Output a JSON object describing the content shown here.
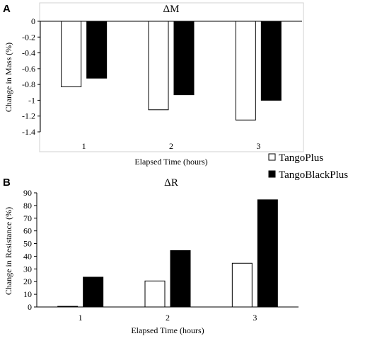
{
  "legend": {
    "items": [
      {
        "label": "TangoPlus",
        "fill": "#ffffff"
      },
      {
        "label": "TangoBlackPlus",
        "fill": "#000000"
      }
    ]
  },
  "chart_data": [
    {
      "panel": "A",
      "type": "bar",
      "title": "ΔM",
      "xlabel": "Elapsed Time (hours)",
      "ylabel": "Change in Mass (%)",
      "categories": [
        "1",
        "2",
        "3"
      ],
      "ylim": [
        -1.4,
        0
      ],
      "yticks": [
        0,
        -0.2,
        -0.4,
        -0.6,
        -0.8,
        -1,
        -1.2,
        -1.4
      ],
      "ytick_labels": [
        "0",
        "-0.2",
        "-0.4",
        "-0.6",
        "-0.8",
        "-1",
        "-1.2",
        "-1.4"
      ],
      "grid": false,
      "series": [
        {
          "name": "TangoPlus",
          "values": [
            -0.83,
            -1.12,
            -1.25
          ]
        },
        {
          "name": "TangoBlackPlus",
          "values": [
            -0.72,
            -0.93,
            -1.0
          ]
        }
      ]
    },
    {
      "panel": "B",
      "type": "bar",
      "title": "ΔR",
      "xlabel": "Elapsed Time (hours)",
      "ylabel": "Change in Resistance (%)",
      "categories": [
        "1",
        "2",
        "3"
      ],
      "ylim": [
        0,
        90
      ],
      "yticks": [
        0,
        10,
        20,
        30,
        40,
        50,
        60,
        70,
        80,
        90
      ],
      "ytick_labels": [
        "0",
        "10",
        "20",
        "30",
        "40",
        "50",
        "60",
        "70",
        "80",
        "90"
      ],
      "grid": false,
      "series": [
        {
          "name": "TangoPlus",
          "values": [
            0.5,
            20.5,
            34.5
          ]
        },
        {
          "name": "TangoBlackPlus",
          "values": [
            23.5,
            44.5,
            84.5
          ]
        }
      ]
    }
  ]
}
